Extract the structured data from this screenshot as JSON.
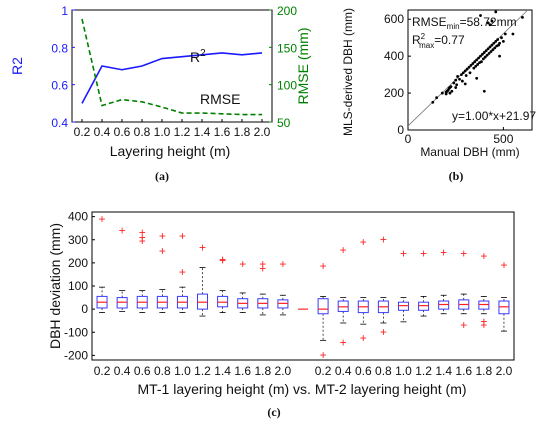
{
  "chart_data": [
    {
      "panel": "(a)",
      "type": "line",
      "x": [
        0.2,
        0.4,
        0.6,
        0.8,
        1.0,
        1.2,
        1.4,
        1.6,
        1.8,
        2.0
      ],
      "xlabel": "Layering height (m)",
      "xtick_labels": [
        "0.2",
        "0.4",
        "0.6",
        "0.8",
        "1.0",
        "1.2",
        "1.4",
        "1.6",
        "1.8",
        "2.0"
      ],
      "ylabel_left": "R2",
      "ylabel_right": "RMSE (mm)",
      "ylim_left": [
        0.4,
        1.0
      ],
      "ylim_right": [
        50,
        200
      ],
      "yticks_left": [
        "0.4",
        "0.6",
        "0.8",
        "1"
      ],
      "yticks_right": [
        "50",
        "100",
        "150",
        "200"
      ],
      "series": [
        {
          "name": "R2",
          "axis": "left",
          "style": "solid",
          "color": "#1a1aff",
          "values": [
            0.5,
            0.7,
            0.68,
            0.7,
            0.74,
            0.75,
            0.76,
            0.77,
            0.76,
            0.77
          ]
        },
        {
          "name": "RMSE",
          "axis": "right",
          "style": "dashed",
          "color": "#008000",
          "values": [
            188,
            72,
            80,
            77,
            70,
            62,
            62,
            61,
            60,
            60
          ]
        }
      ],
      "annotations": [
        {
          "text": "R",
          "sup": "2"
        },
        {
          "text": "RMSE"
        }
      ]
    },
    {
      "panel": "(b)",
      "type": "scatter",
      "xlabel": "Manual DBH (mm)",
      "ylabel": "MLS-derived DBH (mm)",
      "xlim": [
        0,
        650
      ],
      "ylim": [
        0,
        650
      ],
      "xticks": [
        "0",
        "500"
      ],
      "yticks": [
        "0",
        "200",
        "400",
        "600"
      ],
      "points": [
        [
          130,
          150
        ],
        [
          150,
          175
        ],
        [
          180,
          200
        ],
        [
          200,
          205
        ],
        [
          205,
          210
        ],
        [
          210,
          215
        ],
        [
          215,
          225
        ],
        [
          220,
          200
        ],
        [
          225,
          235
        ],
        [
          230,
          210
        ],
        [
          240,
          255
        ],
        [
          250,
          270
        ],
        [
          255,
          245
        ],
        [
          260,
          290
        ],
        [
          270,
          275
        ],
        [
          280,
          300
        ],
        [
          285,
          265
        ],
        [
          290,
          310
        ],
        [
          300,
          320
        ],
        [
          305,
          295
        ],
        [
          310,
          330
        ],
        [
          320,
          340
        ],
        [
          325,
          310
        ],
        [
          330,
          350
        ],
        [
          340,
          360
        ],
        [
          345,
          335
        ],
        [
          350,
          370
        ],
        [
          355,
          345
        ],
        [
          360,
          380
        ],
        [
          365,
          355
        ],
        [
          370,
          390
        ],
        [
          375,
          365
        ],
        [
          380,
          400
        ],
        [
          385,
          370
        ],
        [
          390,
          410
        ],
        [
          395,
          385
        ],
        [
          400,
          420
        ],
        [
          405,
          395
        ],
        [
          410,
          430
        ],
        [
          415,
          405
        ],
        [
          420,
          440
        ],
        [
          425,
          415
        ],
        [
          430,
          450
        ],
        [
          435,
          425
        ],
        [
          440,
          460
        ],
        [
          445,
          435
        ],
        [
          450,
          470
        ],
        [
          455,
          445
        ],
        [
          460,
          480
        ],
        [
          465,
          455
        ],
        [
          470,
          490
        ],
        [
          475,
          460
        ],
        [
          480,
          470
        ],
        [
          490,
          500
        ],
        [
          500,
          480
        ],
        [
          510,
          520
        ],
        [
          420,
          580
        ],
        [
          380,
          620
        ],
        [
          440,
          590
        ],
        [
          400,
          210
        ],
        [
          360,
          280
        ],
        [
          300,
          250
        ],
        [
          480,
          400
        ],
        [
          550,
          520
        ],
        [
          600,
          610
        ],
        [
          460,
          640
        ],
        [
          430,
          570
        ],
        [
          200,
          195
        ],
        [
          220,
          230
        ],
        [
          250,
          230
        ]
      ],
      "fit_line": "y=1.00*x+21.97",
      "annotations": [
        {
          "text": "RMSE",
          "sub": "min",
          "tail": "=58.72mm"
        },
        {
          "text": "R",
          "sup": "2",
          "sub": "max",
          "tail": "=0.77"
        },
        {
          "text": "y=1.00*x+21.97"
        }
      ]
    },
    {
      "panel": "(c)",
      "type": "box",
      "xlabel": "MT-1 layering height (m) vs. MT-2 layering height (m)",
      "ylabel": "DBH deviation (mm)",
      "ylim": [
        -220,
        420
      ],
      "yticks": [
        "-200",
        "-100",
        "0",
        "100",
        "200",
        "300",
        "400"
      ],
      "groups": [
        {
          "name": "MT-1",
          "categories": [
            "0.2",
            "0.4",
            "0.6",
            "0.8",
            "1.0",
            "1.2",
            "1.4",
            "1.6",
            "1.8",
            "2.0"
          ],
          "boxes": [
            {
              "q1": 5,
              "median": 30,
              "q3": 55,
              "wlo": -15,
              "whi": 95,
              "outliers": [
                395
              ]
            },
            {
              "q1": 5,
              "median": 30,
              "q3": 50,
              "wlo": -10,
              "whi": 80,
              "outliers": [
                345
              ]
            },
            {
              "q1": 5,
              "median": 30,
              "q3": 55,
              "wlo": -15,
              "whi": 80,
              "outliers": [
                315,
                300,
                335
              ]
            },
            {
              "q1": 5,
              "median": 30,
              "q3": 55,
              "wlo": -15,
              "whi": 85,
              "outliers": [
                320,
                255
              ]
            },
            {
              "q1": 5,
              "median": 30,
              "q3": 55,
              "wlo": -15,
              "whi": 95,
              "outliers": [
                320,
                165
              ]
            },
            {
              "q1": 0,
              "median": 30,
              "q3": 65,
              "wlo": -30,
              "whi": 180,
              "outliers": [
                270
              ]
            },
            {
              "q1": 10,
              "median": 30,
              "q3": 55,
              "wlo": -15,
              "whi": 80,
              "outliers": [
                220,
                215
              ]
            },
            {
              "q1": 5,
              "median": 25,
              "q3": 45,
              "wlo": -15,
              "whi": 70,
              "outliers": [
                200
              ]
            },
            {
              "q1": 5,
              "median": 25,
              "q3": 45,
              "wlo": -25,
              "whi": 65,
              "outliers": [
                200,
                180
              ]
            },
            {
              "q1": 5,
              "median": 25,
              "q3": 40,
              "wlo": -25,
              "whi": 60,
              "outliers": [
                200
              ]
            }
          ]
        },
        {
          "name": "MT-2",
          "categories": [
            "0.2",
            "0.4",
            "0.6",
            "0.8",
            "1.0",
            "1.2",
            "1.4",
            "1.6",
            "1.8",
            "2.0"
          ],
          "boxes": [
            {
              "q1": -20,
              "median": 0,
              "q3": 45,
              "wlo": -135,
              "whi": 55,
              "outliers": [
                190,
                -195
              ]
            },
            {
              "q1": -10,
              "median": 10,
              "q3": 35,
              "wlo": -60,
              "whi": 50,
              "outliers": [
                260,
                -140
              ]
            },
            {
              "q1": -15,
              "median": 10,
              "q3": 35,
              "wlo": -65,
              "whi": 50,
              "outliers": [
                295,
                -120
              ]
            },
            {
              "q1": -15,
              "median": 10,
              "q3": 35,
              "wlo": -60,
              "whi": 50,
              "outliers": [
                305,
                -95
              ]
            },
            {
              "q1": -5,
              "median": 15,
              "q3": 30,
              "wlo": -55,
              "whi": 50,
              "outliers": [
                245
              ]
            },
            {
              "q1": -5,
              "median": 15,
              "q3": 30,
              "wlo": -30,
              "whi": 55,
              "outliers": [
                245
              ]
            },
            {
              "q1": 0,
              "median": 20,
              "q3": 35,
              "wlo": -20,
              "whi": 60,
              "outliers": [
                250
              ]
            },
            {
              "q1": 0,
              "median": 20,
              "q3": 40,
              "wlo": -20,
              "whi": 65,
              "outliers": [
                245,
                -65
              ]
            },
            {
              "q1": 0,
              "median": 20,
              "q3": 35,
              "wlo": -20,
              "whi": 55,
              "outliers": [
                235,
                -50,
                -65
              ]
            },
            {
              "q1": -20,
              "median": 10,
              "q3": 35,
              "wlo": -95,
              "whi": 50,
              "outliers": [
                195
              ]
            }
          ]
        }
      ]
    }
  ],
  "captions": {
    "a": "(a)",
    "b": "(b)",
    "c": "(c)"
  },
  "colors": {
    "r2": "#1a1aff",
    "rmse": "#008000",
    "box": "#3a3aff",
    "median": "#ff2020",
    "outlier": "#ff2020",
    "connector": "#ff0000"
  }
}
